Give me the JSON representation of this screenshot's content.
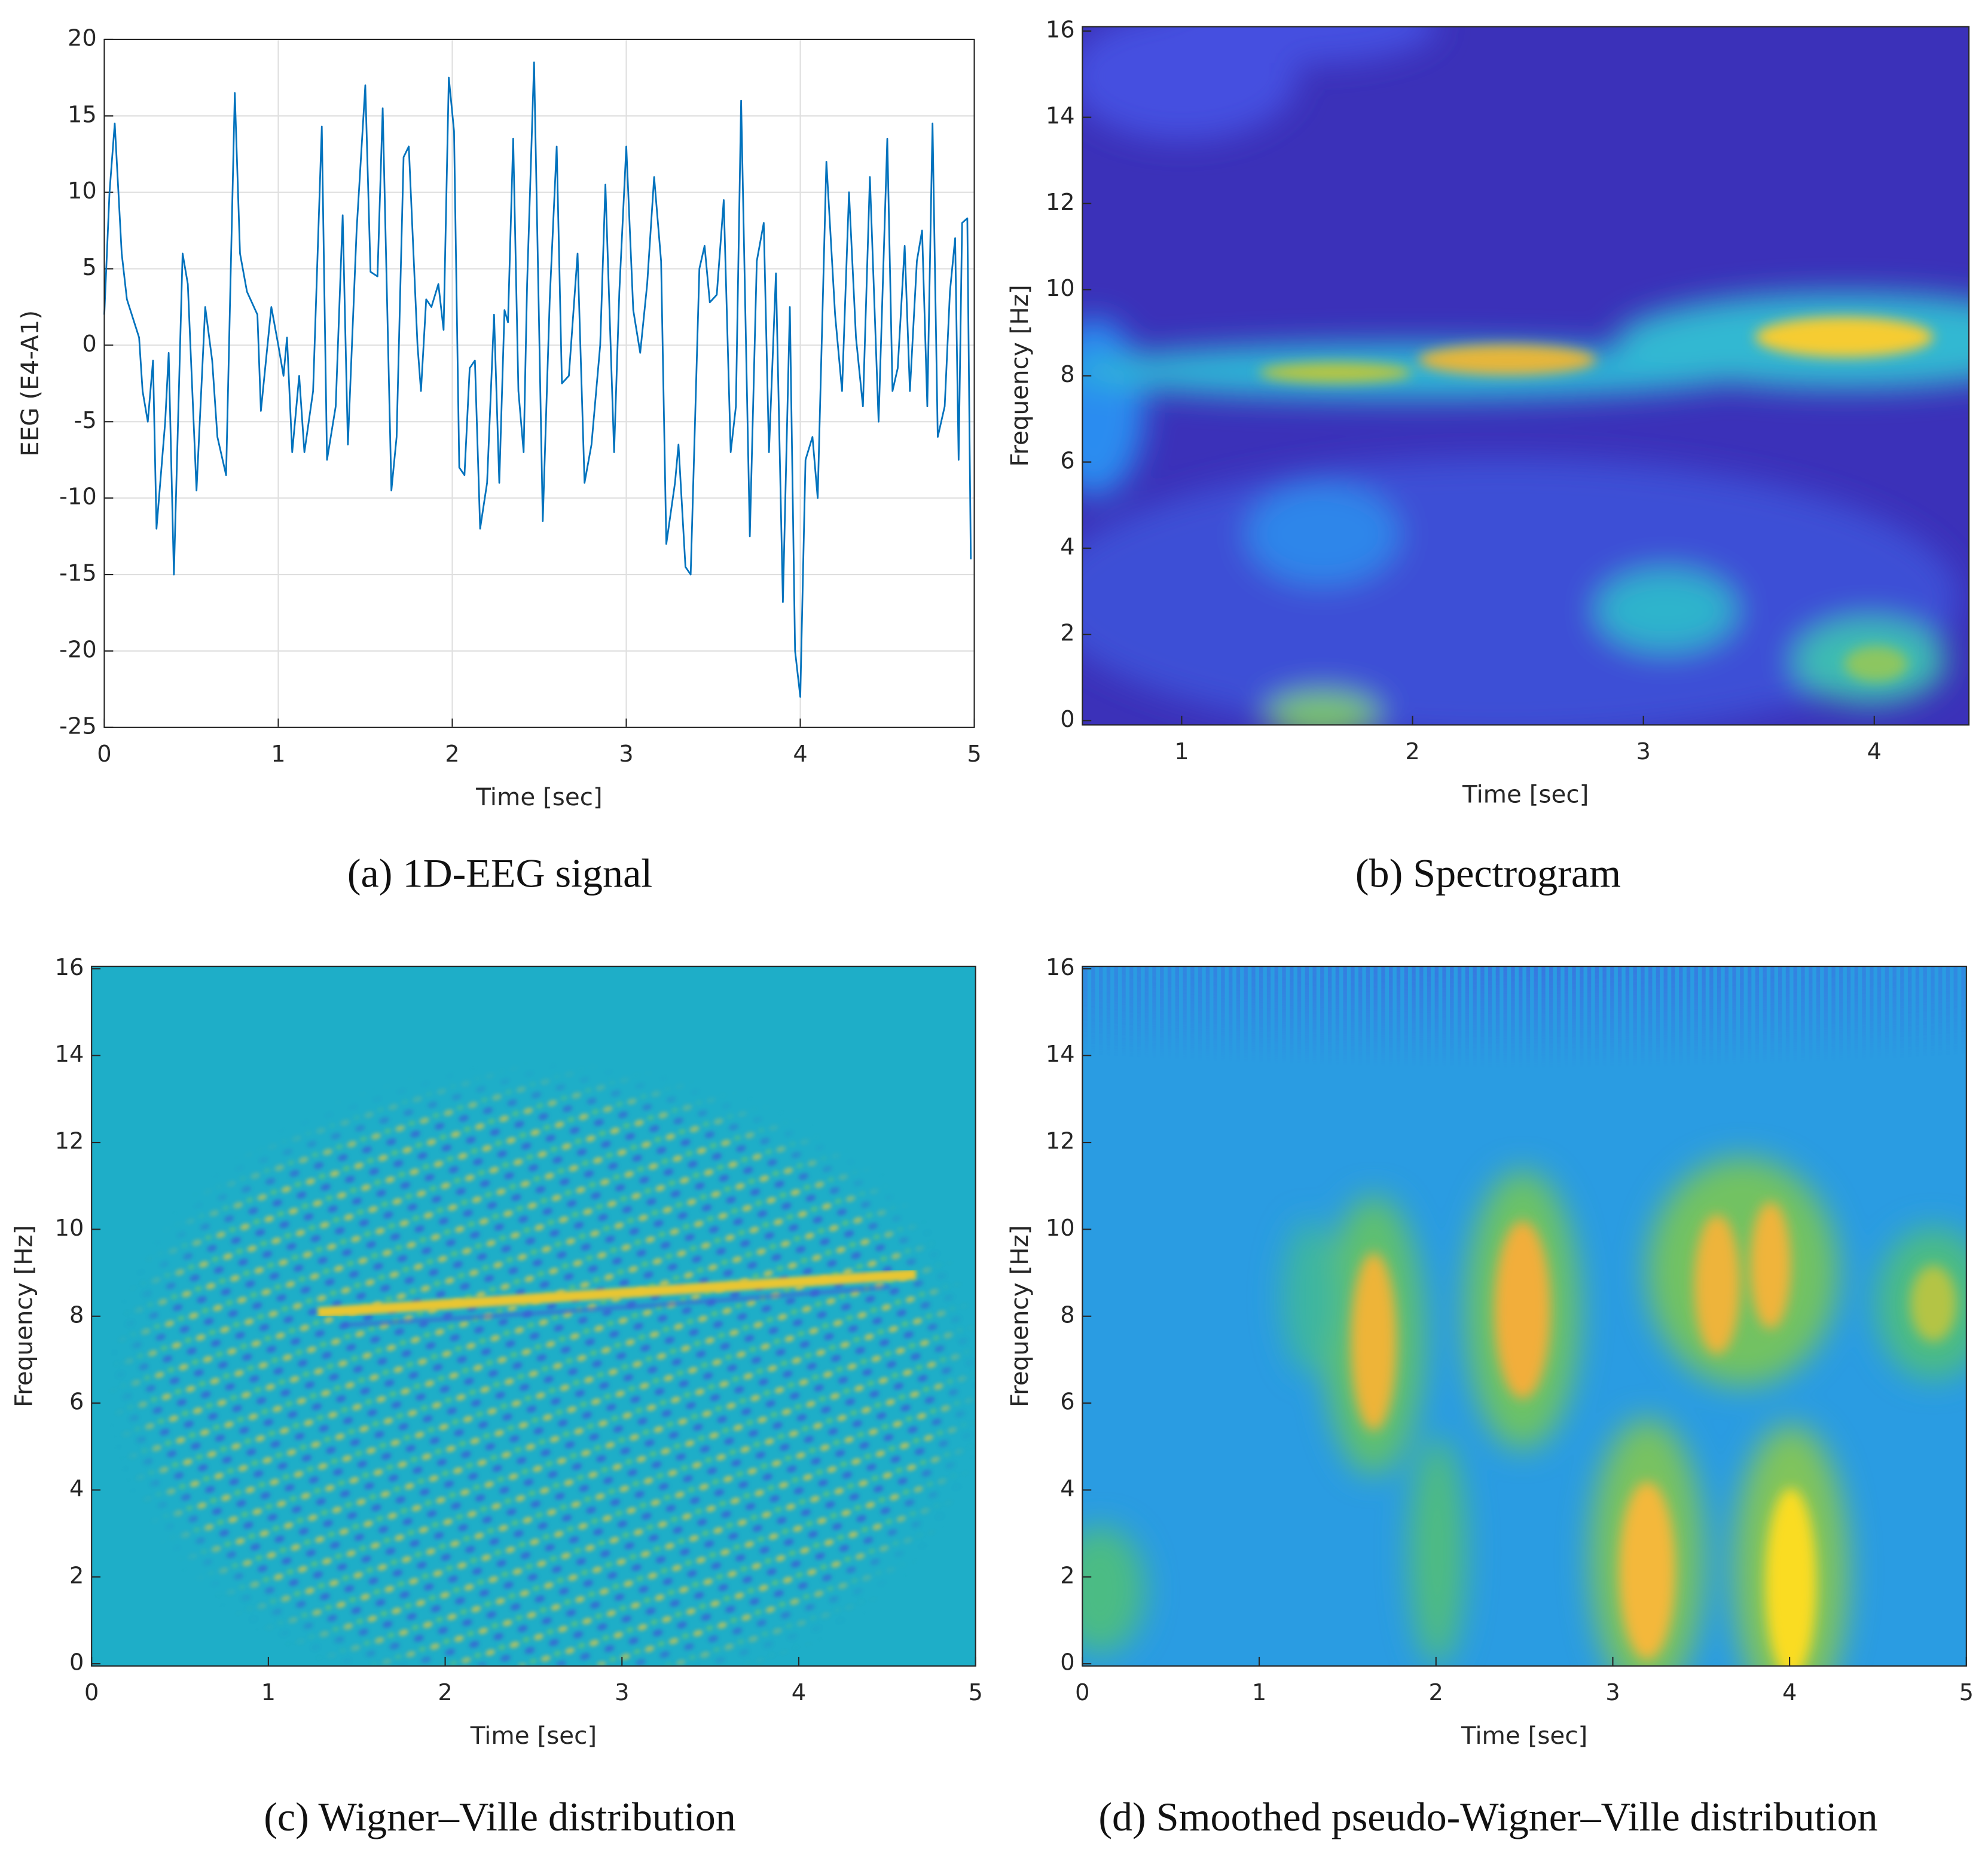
{
  "chart_data": [
    {
      "type": "line",
      "caption": "(a) 1D-EEG signal",
      "xlabel": "Time [sec]",
      "ylabel": "EEG (E4-A1)",
      "xlim": [
        0,
        5
      ],
      "xticks": [
        0,
        1,
        2,
        3,
        4,
        5
      ],
      "ylim": [
        -25,
        20
      ],
      "yticks": [
        -25,
        -20,
        -15,
        -10,
        -5,
        0,
        5,
        10,
        15,
        20
      ],
      "grid": true,
      "series": [
        {
          "color": "#0072bd",
          "x": [
            0,
            0.03,
            0.06,
            0.1,
            0.13,
            0.2,
            0.22,
            0.25,
            0.28,
            0.3,
            0.35,
            0.37,
            0.4,
            0.45,
            0.48,
            0.53,
            0.58,
            0.62,
            0.65,
            0.7,
            0.75,
            0.78,
            0.82,
            0.88,
            0.9,
            0.96,
            1.0,
            1.03,
            1.05,
            1.08,
            1.12,
            1.15,
            1.2,
            1.25,
            1.28,
            1.33,
            1.37,
            1.4,
            1.45,
            1.5,
            1.53,
            1.57,
            1.6,
            1.65,
            1.68,
            1.72,
            1.75,
            1.8,
            1.82,
            1.85,
            1.88,
            1.92,
            1.95,
            1.98,
            2.01,
            2.04,
            2.07,
            2.1,
            2.13,
            2.16,
            2.2,
            2.24,
            2.27,
            2.3,
            2.32,
            2.35,
            2.38,
            2.41,
            2.43,
            2.47,
            2.52,
            2.56,
            2.6,
            2.63,
            2.67,
            2.72,
            2.76,
            2.8,
            2.85,
            2.88,
            2.93,
            2.96,
            3.0,
            3.04,
            3.08,
            3.12,
            3.16,
            3.2,
            3.23,
            3.28,
            3.3,
            3.34,
            3.37,
            3.42,
            3.45,
            3.48,
            3.52,
            3.56,
            3.6,
            3.63,
            3.66,
            3.71,
            3.75,
            3.79,
            3.82,
            3.86,
            3.9,
            3.94,
            3.97,
            4.0,
            4.03,
            4.07,
            4.1,
            4.15,
            4.2,
            4.24,
            4.28,
            4.32,
            4.36,
            4.4,
            4.45,
            4.5,
            4.53,
            4.56,
            4.6,
            4.63,
            4.67,
            4.7,
            4.73,
            4.76,
            4.79,
            4.83,
            4.86,
            4.89,
            4.91,
            4.93,
            4.96,
            4.98
          ],
          "values": [
            2,
            10,
            14.5,
            6,
            3,
            0.5,
            -3,
            -5,
            -1,
            -12,
            -5,
            -0.5,
            -15,
            6,
            4,
            -9.5,
            2.5,
            -1,
            -6,
            -8.5,
            16.5,
            6,
            3.5,
            2,
            -4.3,
            2.5,
            0,
            -2,
            0.5,
            -7,
            -2,
            -7,
            -3,
            14.3,
            -7.5,
            -4,
            8.5,
            -6.5,
            7.5,
            17,
            4.8,
            4.5,
            15.5,
            -9.5,
            -6,
            12.3,
            13,
            0,
            -3,
            3,
            2.5,
            4,
            1,
            17.5,
            14,
            -8,
            -8.5,
            -1.5,
            -1,
            -12,
            -9,
            2,
            -9,
            2.3,
            1.5,
            13.5,
            -3,
            -7,
            4,
            18.5,
            -11.5,
            3,
            13,
            -2.5,
            -2,
            6,
            -9,
            -6.5,
            0,
            10.5,
            -7,
            3.5,
            13,
            2.3,
            -0.5,
            4,
            11,
            5.5,
            -13,
            -9,
            -6.5,
            -14.5,
            -15,
            5,
            6.5,
            2.8,
            3.3,
            9.5,
            -7,
            -4,
            16,
            -12.5,
            5.5,
            8,
            -7,
            4.7,
            -16.8,
            2.5,
            -20,
            -23,
            -7.5,
            -6,
            -10,
            12,
            2,
            -3,
            10,
            0.5,
            -4,
            11,
            -5,
            13.5,
            -3,
            -1.5,
            6.5,
            -3,
            5.5,
            7.5,
            -4,
            14.5,
            -6,
            -4,
            3.5,
            7,
            -7.5,
            8,
            8.3,
            -14
          ]
        }
      ]
    },
    {
      "type": "heatmap",
      "caption": "(b) Spectrogram",
      "xlabel": "Time [sec]",
      "ylabel": "Frequency [Hz]",
      "xlim": [
        0.57,
        4.41
      ],
      "xticks": [
        1,
        2,
        3,
        4
      ],
      "ylim": [
        -0.1,
        16.1
      ],
      "yticks": [
        0,
        2,
        4,
        6,
        8,
        10,
        12,
        14,
        16
      ]
    },
    {
      "type": "heatmap",
      "caption": "(c) Wigner–Ville distribution",
      "xlabel": "Time [sec]",
      "ylabel": "Frequency [Hz]",
      "xlim": [
        0,
        5
      ],
      "xticks": [
        0,
        1,
        2,
        3,
        4,
        5
      ],
      "ylim": [
        -0.05,
        16.05
      ],
      "yticks": [
        0,
        2,
        4,
        6,
        8,
        10,
        12,
        14,
        16
      ]
    },
    {
      "type": "heatmap",
      "caption": "(d) Smoothed pseudo-Wigner–Ville distribution",
      "xlabel": "Time [sec]",
      "ylabel": "Frequency [Hz]",
      "xlim": [
        0,
        5
      ],
      "xticks": [
        0,
        1,
        2,
        3,
        4,
        5
      ],
      "ylim": [
        -0.05,
        16.05
      ],
      "yticks": [
        0,
        2,
        4,
        6,
        8,
        10,
        12,
        14,
        16
      ]
    }
  ]
}
